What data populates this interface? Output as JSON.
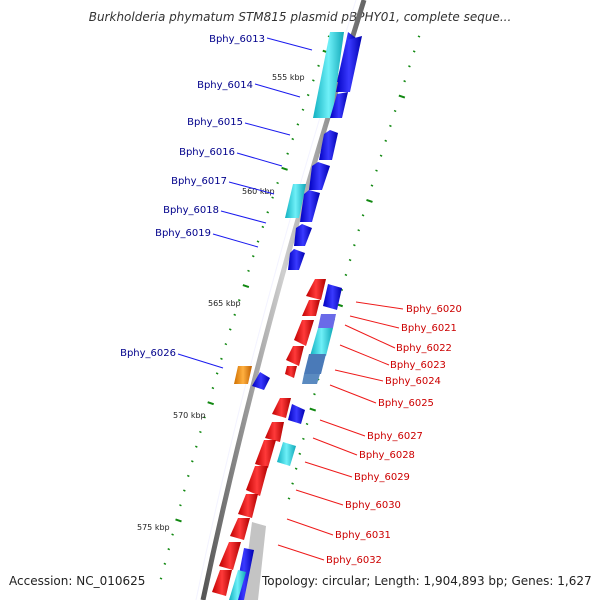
{
  "header": {
    "title": "Burkholderia phymatum STM815 plasmid pBPHY01, complete seque..."
  },
  "footer": {
    "accession": "Accession: NC_010625",
    "topology": "Topology: circular; Length: 1,904,893 bp; Genes: 1,627"
  },
  "scale_labels": [
    "555 kbp",
    "560 kbp",
    "565 kbp",
    "570 kbp",
    "575 kbp"
  ],
  "genes_left": [
    "Bphy_6013",
    "Bphy_6014",
    "Bphy_6015",
    "Bphy_6016",
    "Bphy_6017",
    "Bphy_6018",
    "Bphy_6019",
    "Bphy_6026"
  ],
  "genes_right": [
    "Bphy_6020",
    "Bphy_6021",
    "Bphy_6022",
    "Bphy_6023",
    "Bphy_6024",
    "Bphy_6025",
    "Bphy_6027",
    "Bphy_6028",
    "Bphy_6029",
    "Bphy_6030",
    "Bphy_6031",
    "Bphy_6032"
  ],
  "colors": {
    "forward_cds": "#1a1aee",
    "reverse_cds": "#ee1a1a",
    "cyan_feature": "#22d8e0",
    "orange_feature": "#ff9000",
    "backbone": "#888888",
    "tick": "#118811",
    "left_label": "#00008b",
    "right_label": "#cc0000"
  }
}
